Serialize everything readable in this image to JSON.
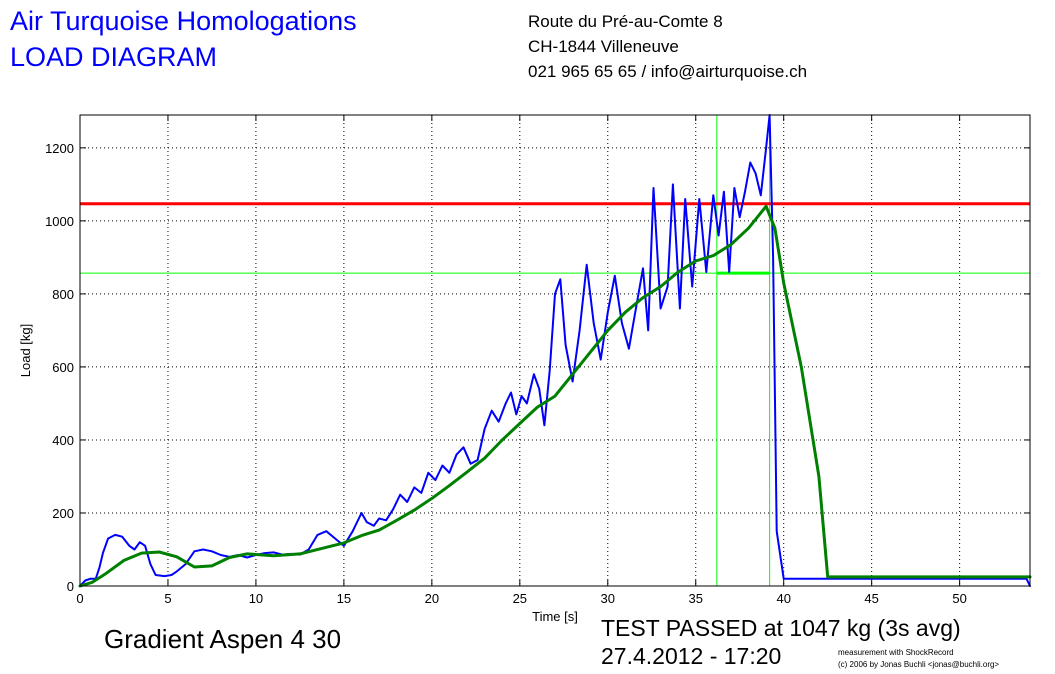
{
  "header": {
    "title_line1": "Air Turquoise Homologations",
    "title_line2": "LOAD DIAGRAM",
    "address_line1": "Route du Pré-au-Comte 8",
    "address_line2": "CH-1844 Villeneuve",
    "address_line3": "021 965 65 65 / info@airturquoise.ch"
  },
  "footer": {
    "glider": "Gradient Aspen 4 30",
    "result_line1": "TEST PASSED at 1047 kg (3s avg)",
    "result_line2": "27.4.2012 - 17:20",
    "credit_line1": "measurement with ShockRecord",
    "credit_line2": "(c) 2006 by Jonas Buchli <jonas@buchli.org>"
  },
  "colors": {
    "raw": "#0000ff",
    "avg": "#008000",
    "threshold": "#ff0000",
    "marker": "#00ff00",
    "grid": "#000000"
  },
  "chart_data": {
    "type": "line",
    "xlabel": "Time [s]",
    "ylabel": "Load [kg]",
    "xlim": [
      0,
      54
    ],
    "ylim": [
      0,
      1290
    ],
    "x_ticks": [
      0,
      5,
      10,
      15,
      20,
      25,
      30,
      35,
      40,
      45,
      50
    ],
    "y_ticks": [
      0,
      200,
      400,
      600,
      800,
      1000,
      1200
    ],
    "grid": true,
    "threshold_load": 1047,
    "marker_load": 857,
    "marker_x": [
      36.2,
      39.2
    ],
    "series": [
      {
        "key": "raw",
        "points": [
          [
            0,
            0
          ],
          [
            0.3,
            15
          ],
          [
            0.6,
            20
          ],
          [
            0.9,
            20
          ],
          [
            1.1,
            50
          ],
          [
            1.3,
            90
          ],
          [
            1.6,
            130
          ],
          [
            2.0,
            140
          ],
          [
            2.4,
            135
          ],
          [
            2.8,
            110
          ],
          [
            3.1,
            100
          ],
          [
            3.4,
            120
          ],
          [
            3.7,
            110
          ],
          [
            4.0,
            60
          ],
          [
            4.3,
            30
          ],
          [
            4.8,
            27
          ],
          [
            5.2,
            30
          ],
          [
            5.5,
            40
          ],
          [
            6.0,
            60
          ],
          [
            6.5,
            95
          ],
          [
            7.0,
            100
          ],
          [
            7.5,
            95
          ],
          [
            8.0,
            85
          ],
          [
            8.5,
            80
          ],
          [
            9.0,
            85
          ],
          [
            9.5,
            78
          ],
          [
            10,
            85
          ],
          [
            10.5,
            90
          ],
          [
            11,
            92
          ],
          [
            11.5,
            86
          ],
          [
            12,
            88
          ],
          [
            12.5,
            86
          ],
          [
            13,
            100
          ],
          [
            13.5,
            140
          ],
          [
            14,
            150
          ],
          [
            14.5,
            130
          ],
          [
            15,
            110
          ],
          [
            15.5,
            150
          ],
          [
            16,
            200
          ],
          [
            16.3,
            175
          ],
          [
            16.7,
            165
          ],
          [
            17,
            185
          ],
          [
            17.4,
            180
          ],
          [
            17.8,
            210
          ],
          [
            18.2,
            250
          ],
          [
            18.6,
            230
          ],
          [
            19,
            270
          ],
          [
            19.4,
            255
          ],
          [
            19.8,
            310
          ],
          [
            20.2,
            290
          ],
          [
            20.6,
            330
          ],
          [
            21,
            310
          ],
          [
            21.4,
            360
          ],
          [
            21.8,
            380
          ],
          [
            22.2,
            335
          ],
          [
            22.6,
            345
          ],
          [
            23,
            430
          ],
          [
            23.4,
            480
          ],
          [
            23.8,
            450
          ],
          [
            24.2,
            500
          ],
          [
            24.5,
            530
          ],
          [
            24.8,
            470
          ],
          [
            25.1,
            520
          ],
          [
            25.4,
            500
          ],
          [
            25.8,
            580
          ],
          [
            26.1,
            540
          ],
          [
            26.4,
            440
          ],
          [
            26.7,
            590
          ],
          [
            27,
            800
          ],
          [
            27.3,
            840
          ],
          [
            27.6,
            660
          ],
          [
            28,
            560
          ],
          [
            28.4,
            700
          ],
          [
            28.8,
            880
          ],
          [
            29.2,
            720
          ],
          [
            29.6,
            620
          ],
          [
            30,
            750
          ],
          [
            30.4,
            850
          ],
          [
            30.8,
            720
          ],
          [
            31.2,
            650
          ],
          [
            31.6,
            760
          ],
          [
            32.0,
            870
          ],
          [
            32.3,
            700
          ],
          [
            32.6,
            1090
          ],
          [
            33.0,
            760
          ],
          [
            33.4,
            820
          ],
          [
            33.7,
            1100
          ],
          [
            34.1,
            760
          ],
          [
            34.4,
            1060
          ],
          [
            34.8,
            820
          ],
          [
            35.2,
            1060
          ],
          [
            35.6,
            860
          ],
          [
            36.0,
            1070
          ],
          [
            36.3,
            960
          ],
          [
            36.6,
            1080
          ],
          [
            36.9,
            860
          ],
          [
            37.2,
            1090
          ],
          [
            37.5,
            1010
          ],
          [
            37.8,
            1080
          ],
          [
            38.1,
            1160
          ],
          [
            38.4,
            1130
          ],
          [
            38.7,
            1070
          ],
          [
            39.0,
            1200
          ],
          [
            39.2,
            1290
          ],
          [
            39.4,
            900
          ],
          [
            39.6,
            150
          ],
          [
            40,
            20
          ],
          [
            42,
            20
          ],
          [
            43,
            20
          ],
          [
            50,
            20
          ],
          [
            53.8,
            20
          ],
          [
            54,
            0
          ]
        ]
      },
      {
        "key": "avg",
        "points": [
          [
            0,
            0
          ],
          [
            0.7,
            10
          ],
          [
            1.5,
            35
          ],
          [
            2.5,
            70
          ],
          [
            3.5,
            90
          ],
          [
            4.5,
            93
          ],
          [
            5.5,
            80
          ],
          [
            6.5,
            52
          ],
          [
            7.5,
            55
          ],
          [
            8.5,
            78
          ],
          [
            9.5,
            88
          ],
          [
            11,
            83
          ],
          [
            12.5,
            88
          ],
          [
            14,
            106
          ],
          [
            15,
            118
          ],
          [
            16,
            138
          ],
          [
            17,
            153
          ],
          [
            18,
            180
          ],
          [
            19,
            208
          ],
          [
            20,
            240
          ],
          [
            21,
            275
          ],
          [
            22,
            312
          ],
          [
            23,
            350
          ],
          [
            24,
            400
          ],
          [
            25,
            445
          ],
          [
            26,
            490
          ],
          [
            27,
            520
          ],
          [
            28,
            580
          ],
          [
            29,
            640
          ],
          [
            30,
            700
          ],
          [
            31,
            750
          ],
          [
            32,
            790
          ],
          [
            33,
            820
          ],
          [
            34,
            860
          ],
          [
            35,
            890
          ],
          [
            36,
            905
          ],
          [
            37,
            935
          ],
          [
            38,
            980
          ],
          [
            39.0,
            1040
          ],
          [
            39.5,
            980
          ],
          [
            40,
            830
          ],
          [
            41,
            600
          ],
          [
            42,
            300
          ],
          [
            42.5,
            25
          ],
          [
            54,
            25
          ]
        ]
      }
    ]
  }
}
